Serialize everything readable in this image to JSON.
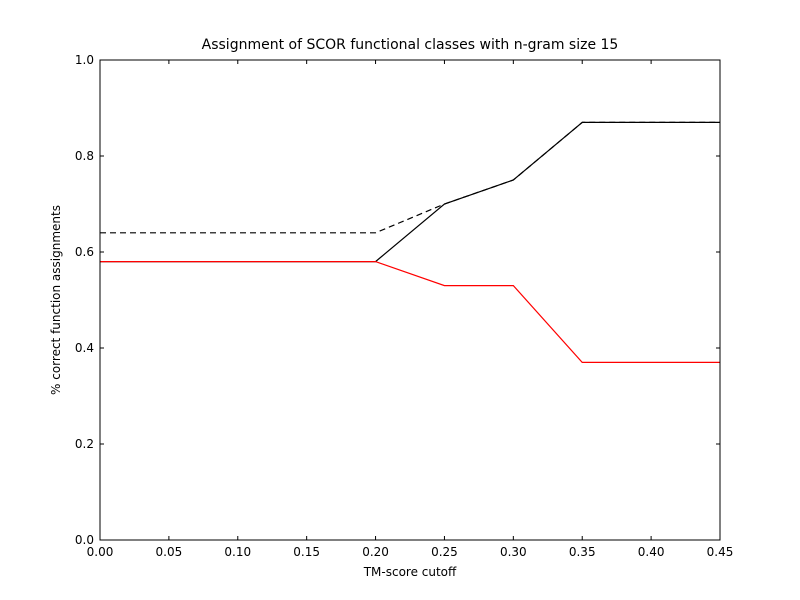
{
  "chart_data": {
    "type": "line",
    "title": "Assignment of SCOR functional classes with n-gram size 15",
    "xlabel": "TM-score cutoff",
    "ylabel": "% correct function assignments",
    "xlim": [
      0.0,
      0.45
    ],
    "ylim": [
      0.0,
      1.0
    ],
    "x_ticks": [
      "0.00",
      "0.05",
      "0.10",
      "0.15",
      "0.20",
      "0.25",
      "0.30",
      "0.35",
      "0.40",
      "0.45"
    ],
    "y_ticks": [
      "0.0",
      "0.2",
      "0.4",
      "0.6",
      "0.8",
      "1.0"
    ],
    "grid": false,
    "legend": false,
    "x": [
      0.0,
      0.05,
      0.1,
      0.15,
      0.2,
      0.25,
      0.3,
      0.35,
      0.4,
      0.45
    ],
    "series": [
      {
        "color": "#000000",
        "style": "dashed",
        "values": [
          0.64,
          0.64,
          0.64,
          0.64,
          0.64,
          0.7,
          0.75,
          0.87,
          0.87,
          0.87
        ]
      },
      {
        "color": "#000000",
        "style": "solid",
        "values": [
          0.58,
          0.58,
          0.58,
          0.58,
          0.58,
          0.7,
          0.75,
          0.87,
          0.87,
          0.87
        ]
      },
      {
        "color": "#ff0000",
        "style": "solid",
        "values": [
          0.58,
          0.58,
          0.58,
          0.58,
          0.58,
          0.53,
          0.53,
          0.37,
          0.37,
          0.37
        ]
      }
    ]
  }
}
